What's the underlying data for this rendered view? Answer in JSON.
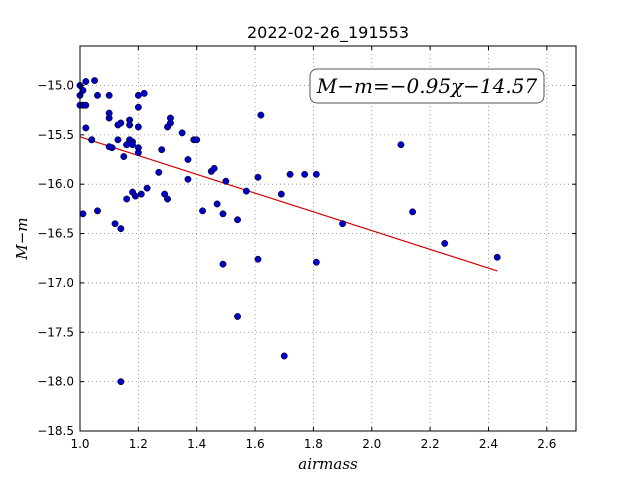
{
  "chart_data": {
    "type": "scatter",
    "title": "2022-02-26_191553",
    "xlabel": "airmass",
    "ylabel": "M−m",
    "xlim": [
      1.0,
      2.7
    ],
    "ylim": [
      -18.5,
      -14.6
    ],
    "xticks": [
      "1.0",
      "1.2",
      "1.4",
      "1.6",
      "1.8",
      "2.0",
      "2.2",
      "2.4",
      "2.6"
    ],
    "xtick_values": [
      1.0,
      1.2,
      1.4,
      1.6,
      1.8,
      2.0,
      2.2,
      2.4,
      2.6
    ],
    "yticks": [
      "−15.0",
      "−15.5",
      "−16.0",
      "−16.5",
      "−17.0",
      "−17.5",
      "−18.0",
      "−18.5"
    ],
    "ytick_values": [
      -15.0,
      -15.5,
      -16.0,
      -16.5,
      -17.0,
      -17.5,
      -18.0,
      -18.5
    ],
    "grid": true,
    "annotation": "M−m=−0.95χ−14.57",
    "fit": {
      "slope": -0.95,
      "intercept": -14.57,
      "x_range": [
        1.0,
        2.43
      ],
      "color": "#d40000"
    },
    "point_color": "#0000bf",
    "x": [
      1.0,
      1.0,
      1.0,
      1.01,
      1.02,
      1.02,
      1.04,
      1.05,
      1.06,
      1.02,
      1.01,
      1.04,
      1.06,
      1.01,
      1.1,
      1.1,
      1.1,
      1.11,
      1.13,
      1.13,
      1.15,
      1.16,
      1.17,
      1.17,
      1.18,
      1.18,
      1.2,
      1.2,
      1.2,
      1.22,
      1.2,
      1.2,
      1.17,
      1.16,
      1.14,
      1.1,
      1.23,
      1.21,
      1.18,
      1.19,
      1.16,
      1.12,
      1.14,
      1.28,
      1.27,
      1.3,
      1.31,
      1.31,
      1.35,
      1.37,
      1.39,
      1.4,
      1.29,
      1.3,
      1.37,
      1.42,
      1.45,
      1.46,
      1.49,
      1.5,
      1.47,
      1.54,
      1.57,
      1.49,
      1.62,
      1.61,
      1.61,
      1.69,
      1.72,
      1.77,
      1.81,
      1.9,
      1.81,
      2.1,
      2.14,
      2.25,
      2.43,
      1.54,
      1.7,
      1.14
    ],
    "y": [
      -15.1,
      -15.0,
      -15.2,
      -15.2,
      -14.96,
      -15.2,
      -15.55,
      -14.95,
      -15.1,
      -15.43,
      -16.3,
      -15.55,
      -16.27,
      -15.05,
      -15.1,
      -15.28,
      -15.33,
      -15.63,
      -15.4,
      -15.55,
      -15.72,
      -15.6,
      -15.35,
      -15.4,
      -15.57,
      -15.6,
      -15.63,
      -15.68,
      -15.1,
      -15.08,
      -15.22,
      -15.42,
      -15.55,
      -16.15,
      -16.45,
      -15.62,
      -16.04,
      -16.1,
      -16.08,
      -16.12,
      -15.6,
      -16.4,
      -15.38,
      -15.65,
      -15.88,
      -15.42,
      -15.33,
      -15.38,
      -15.48,
      -15.95,
      -15.55,
      -15.55,
      -16.1,
      -16.15,
      -15.75,
      -16.27,
      -15.87,
      -15.84,
      -16.81,
      -15.97,
      -16.2,
      -16.36,
      -16.07,
      -16.3,
      -15.3,
      -15.93,
      -16.76,
      -16.1,
      -15.9,
      -15.9,
      -15.9,
      -16.4,
      -16.79,
      -15.6,
      -16.28,
      -16.6,
      -16.74,
      -17.34,
      -17.74,
      -18.0
    ]
  }
}
